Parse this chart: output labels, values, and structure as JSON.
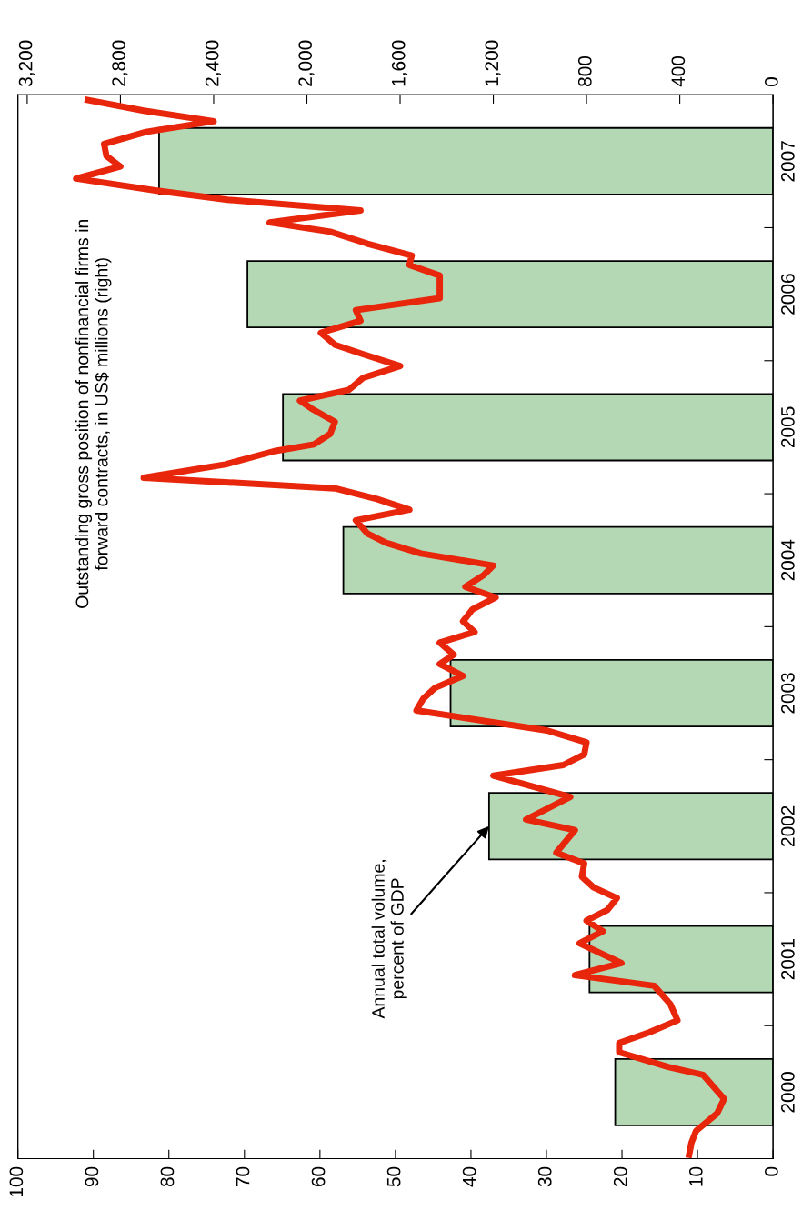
{
  "chart_data": {
    "type": "bar",
    "orientation": "horizontal",
    "x": [
      2000,
      2001,
      2002,
      2003,
      2004,
      2005,
      2006,
      2007
    ],
    "series": [
      {
        "color": "#b4d8b4",
        "values": [
          20.9,
          24.3,
          37.6,
          42.7,
          56.9,
          64.9,
          69.6,
          81.3
        ]
      },
      {
        "type": "line",
        "axis": "x2",
        "color": "#e8260c",
        "x": [
          1999.53,
          1999.62,
          1999.71,
          1999.84,
          1999.95,
          2000.03,
          2000.13,
          2000.19,
          2000.3,
          2000.37,
          2000.45,
          2000.54,
          2000.66,
          2000.8,
          2000.88,
          2000.97,
          2001.12,
          2001.21,
          2001.29,
          2001.37,
          2001.46,
          2001.54,
          2001.62,
          2001.72,
          2001.8,
          2001.97,
          2002.05,
          2002.22,
          2002.38,
          2002.46,
          2002.54,
          2002.63,
          2002.72,
          2002.87,
          2002.96,
          2003.04,
          2003.13,
          2003.22,
          2003.29,
          2003.38,
          2003.46,
          2003.54,
          2003.63,
          2003.72,
          2003.8,
          2003.89,
          2003.96,
          2004.05,
          2004.13,
          2004.2,
          2004.3,
          2004.38,
          2004.46,
          2004.54,
          2004.62,
          2004.72,
          2004.82,
          2004.87,
          2004.95,
          2005.04,
          2005.14,
          2005.2,
          2005.28,
          2005.37,
          2005.46,
          2005.55,
          2005.62,
          2005.71,
          2005.8,
          2005.88,
          2005.97,
          2006.14,
          2006.22,
          2006.29,
          2006.38,
          2006.47,
          2006.54,
          2006.63,
          2006.71,
          2006.78,
          2006.87,
          2006.96,
          2007.04,
          2007.13,
          2007.22,
          2007.3,
          2007.38,
          2007.46
        ],
        "values": [
          360,
          350,
          330,
          240,
          210,
          250,
          300,
          450,
          660,
          660,
          530,
          410,
          440,
          510,
          850,
          650,
          830,
          730,
          800,
          710,
          670,
          770,
          820,
          810,
          930,
          850,
          1060,
          870,
          1200,
          900,
          810,
          800,
          970,
          1530,
          1500,
          1450,
          1330,
          1430,
          1370,
          1430,
          1280,
          1330,
          1290,
          1190,
          1320,
          1240,
          1200,
          1510,
          1660,
          1740,
          1790,
          1560,
          1700,
          1880,
          2700,
          2350,
          2140,
          1970,
          1900,
          1880,
          1980,
          2030,
          1820,
          1760,
          1600,
          1760,
          1880,
          1940,
          1770,
          1790,
          1430,
          1430,
          1560,
          1550,
          1740,
          1900,
          2160,
          1770,
          2340,
          2650,
          2990,
          2800,
          2860,
          2870,
          2690,
          2400,
          2700,
          2940
        ]
      }
    ],
    "xlim": [
      100,
      0
    ],
    "xticks": [
      100,
      90,
      80,
      70,
      60,
      50,
      40,
      30,
      20,
      10,
      0
    ],
    "x2lim": [
      3240,
      0
    ],
    "x2ticks": [
      {
        "value": 3200,
        "label": "3,200"
      },
      {
        "value": 2800,
        "label": "2,800"
      },
      {
        "value": 2400,
        "label": "2,400"
      },
      {
        "value": 2000,
        "label": "2,000"
      },
      {
        "value": 1600,
        "label": "1,600"
      },
      {
        "value": 1200,
        "label": "1,200"
      },
      800,
      400,
      0
    ],
    "ylim": [
      1999.5,
      2007.5
    ],
    "yticks": [
      2000,
      {
        "value": 2000.5,
        "label": null
      },
      2001,
      {
        "value": 2001.5,
        "label": null
      },
      2002,
      {
        "value": 2002.5,
        "label": null
      },
      2003,
      {
        "value": 2003.5,
        "label": null
      },
      2004,
      {
        "value": 2004.5,
        "label": null
      },
      2005,
      {
        "value": 2005.5,
        "label": null
      },
      2006,
      {
        "value": 2006.5,
        "label": null
      },
      2007
    ],
    "annotations": [
      "Outstanding gross position of nonfinancial firms in\nforward contracts, in US$ millions (right)",
      {
        "text": "Annual total volume,\npercent of GDP",
        "x": 37.6,
        "y": 2002
      }
    ]
  }
}
